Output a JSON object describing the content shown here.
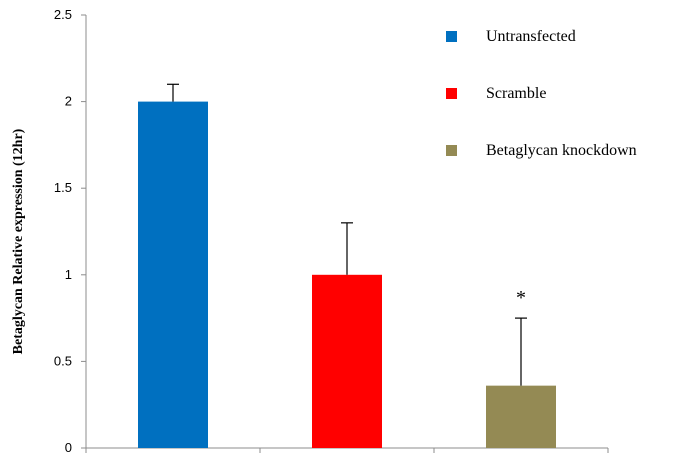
{
  "chart_data": {
    "type": "bar",
    "ylabel": "Betaglycan Relative expression (12hr)",
    "xlabel": "",
    "ylim": [
      0,
      2.5
    ],
    "yticks": [
      0,
      0.5,
      1,
      1.5,
      2,
      2.5
    ],
    "ytick_labels": [
      "0",
      "0.5",
      "1",
      "1.5",
      "2",
      "2.5"
    ],
    "grid": false,
    "legend_position": "top-right",
    "categories": [
      "Untransfected",
      "Scramble",
      "Betaglycan knockdown"
    ],
    "values": [
      2.0,
      1.0,
      0.36
    ],
    "error_bars": [
      0.1,
      0.3,
      0.39
    ],
    "colors": [
      "#0070c0",
      "#ff0000",
      "#948a54"
    ],
    "annotations": [
      {
        "category": "Betaglycan knockdown",
        "text": "*"
      }
    ]
  }
}
